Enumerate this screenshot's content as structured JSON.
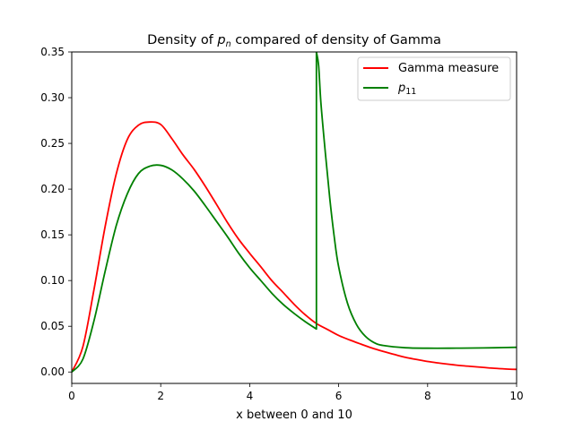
{
  "chart_data": {
    "type": "line",
    "title": {
      "prefix": "Density of ",
      "var": "p",
      "var_sub": "n",
      "suffix": " compared of density of Gamma"
    },
    "xlabel": "x between 0 and 10",
    "ylabel": "",
    "xlim": [
      0,
      10
    ],
    "ylim": [
      -0.0125,
      0.35
    ],
    "xticks": [
      0,
      2,
      4,
      6,
      8,
      10
    ],
    "xtick_labels": [
      "0",
      "2",
      "4",
      "6",
      "8",
      "10"
    ],
    "yticks": [
      0.0,
      0.05,
      0.1,
      0.15,
      0.2,
      0.25,
      0.3,
      0.35
    ],
    "ytick_labels": [
      "0.00",
      "0.05",
      "0.10",
      "0.15",
      "0.20",
      "0.25",
      "0.30",
      "0.35"
    ],
    "grid": false,
    "legend_position": "upper right",
    "series": [
      {
        "name": "Gamma measure",
        "name_main": "Gamma measure",
        "name_sub": "",
        "color": "#ff0000",
        "x": [
          0,
          0.25,
          0.5,
          0.75,
          1.0,
          1.25,
          1.5,
          1.75,
          2.0,
          2.25,
          2.5,
          2.75,
          3.0,
          3.25,
          3.5,
          3.75,
          4.0,
          4.25,
          4.5,
          4.75,
          5.0,
          5.25,
          5.5,
          5.75,
          6.0,
          6.25,
          6.5,
          6.75,
          7.0,
          7.25,
          7.5,
          7.75,
          8.0,
          8.25,
          8.5,
          8.75,
          9.0,
          9.25,
          9.5,
          9.75,
          10.0
        ],
        "y": [
          0.0,
          0.0276,
          0.0902,
          0.1589,
          0.2166,
          0.2544,
          0.27,
          0.2734,
          0.2707,
          0.2552,
          0.2375,
          0.2216,
          0.2033,
          0.1836,
          0.1635,
          0.1453,
          0.1298,
          0.115,
          0.0998,
          0.087,
          0.074,
          0.0625,
          0.053,
          0.0465,
          0.04,
          0.035,
          0.0305,
          0.0262,
          0.0225,
          0.0192,
          0.016,
          0.0137,
          0.0115,
          0.0098,
          0.0083,
          0.007,
          0.006,
          0.005,
          0.004,
          0.0033,
          0.0028
        ]
      },
      {
        "name": "p11",
        "name_main": "p",
        "name_sub": "11",
        "color": "#008000",
        "x": [
          0,
          0.25,
          0.5,
          0.75,
          1.0,
          1.25,
          1.5,
          1.75,
          2.0,
          2.25,
          2.5,
          2.75,
          3.0,
          3.25,
          3.5,
          3.75,
          4.0,
          4.25,
          4.5,
          4.75,
          5.0,
          5.25,
          5.5,
          5.5,
          5.55,
          5.6,
          5.7,
          5.8,
          5.9,
          6.0,
          6.2,
          6.4,
          6.6,
          6.8,
          7.0,
          7.5,
          8.0,
          8.5,
          9.0,
          9.5,
          10.0
        ],
        "y": [
          0.0,
          0.014,
          0.056,
          0.11,
          0.16,
          0.195,
          0.217,
          0.225,
          0.226,
          0.221,
          0.211,
          0.198,
          0.182,
          0.165,
          0.148,
          0.13,
          0.114,
          0.1,
          0.086,
          0.074,
          0.064,
          0.055,
          0.047,
          0.35,
          0.335,
          0.295,
          0.24,
          0.19,
          0.148,
          0.115,
          0.075,
          0.052,
          0.039,
          0.032,
          0.029,
          0.0265,
          0.026,
          0.026,
          0.0262,
          0.0265,
          0.027
        ]
      }
    ]
  }
}
